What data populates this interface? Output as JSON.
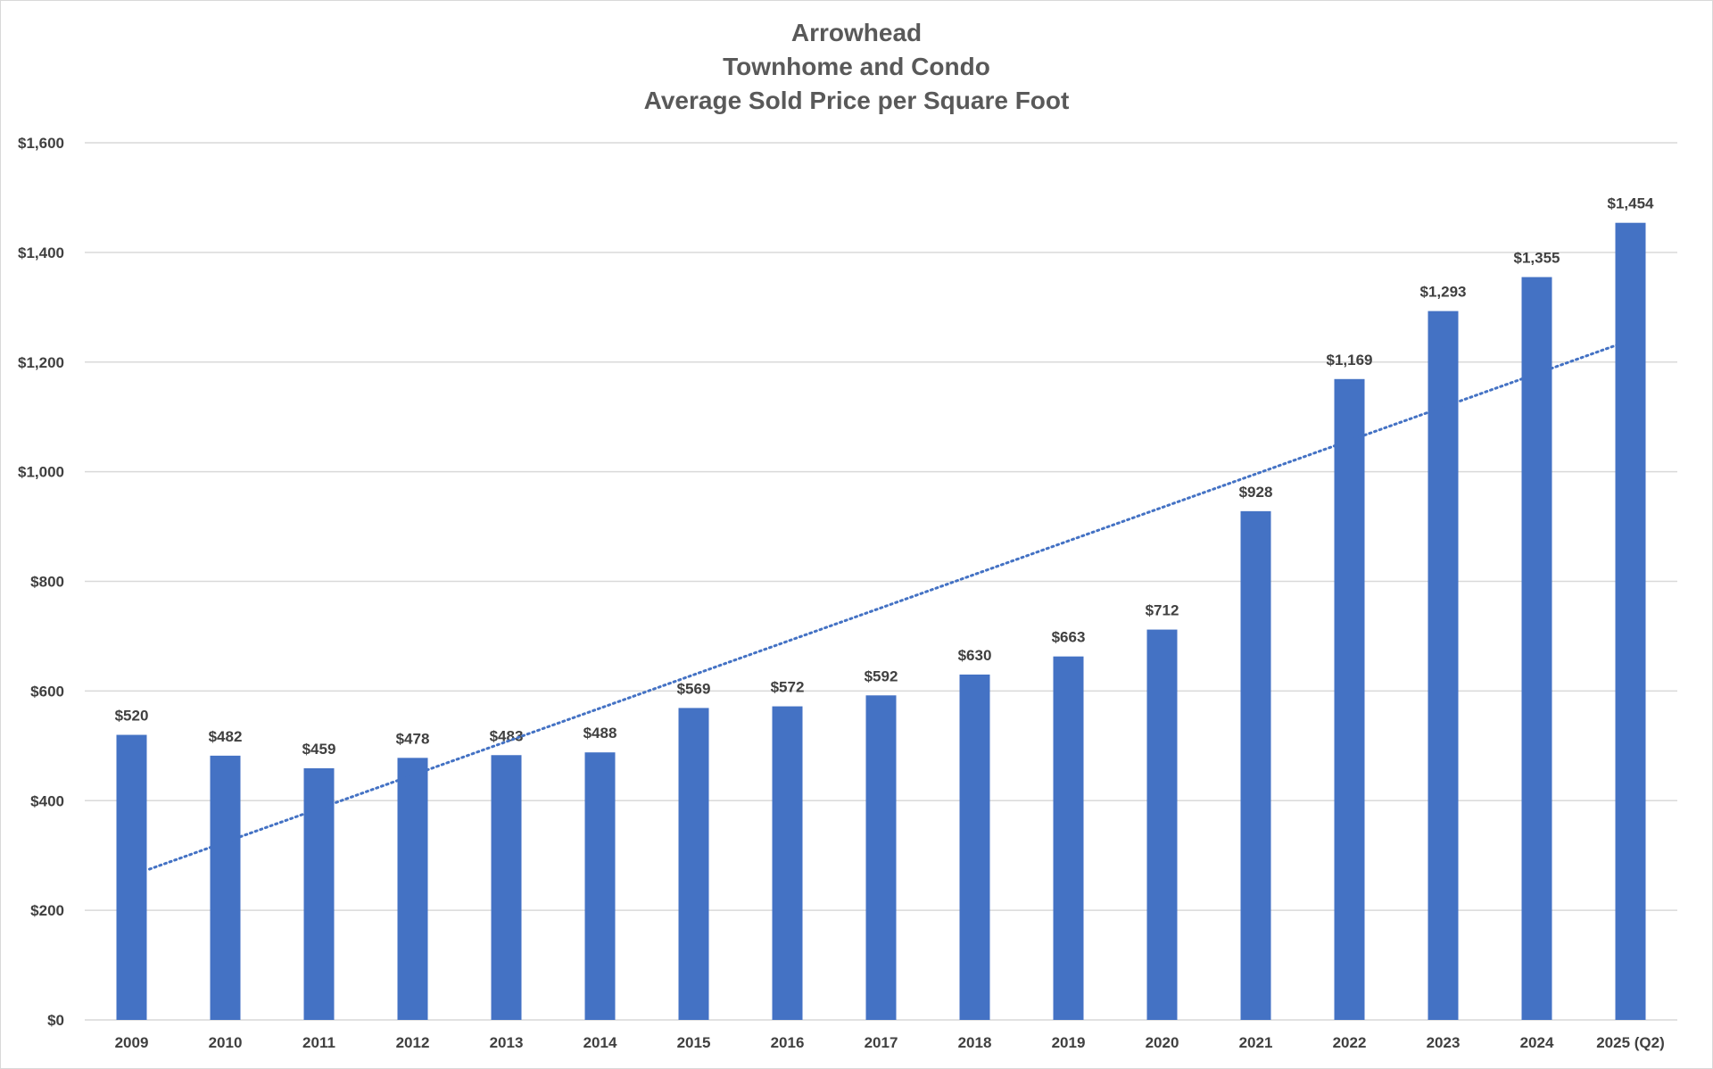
{
  "chart_data": {
    "type": "bar",
    "title_lines": [
      "Arrowhead",
      "Townhome and Condo",
      "Average Sold Price per Square Foot"
    ],
    "categories": [
      "2009",
      "2010",
      "2011",
      "2012",
      "2013",
      "2014",
      "2015",
      "2016",
      "2017",
      "2018",
      "2019",
      "2020",
      "2021",
      "2022",
      "2023",
      "2024",
      "2025 (Q2)"
    ],
    "values": [
      520,
      482,
      459,
      478,
      483,
      488,
      569,
      572,
      592,
      630,
      663,
      712,
      928,
      1169,
      1293,
      1355,
      1454
    ],
    "data_labels": [
      "$520",
      "$482",
      "$459",
      "$478",
      "$483",
      "$488",
      "$569",
      "$572",
      "$592",
      "$630",
      "$663",
      "$712",
      "$928",
      "$1,169",
      "$1,293",
      "$1,355",
      "$1,454"
    ],
    "ylim": [
      0,
      1600
    ],
    "y_ticks": [
      0,
      200,
      400,
      600,
      800,
      1000,
      1200,
      1400,
      1600
    ],
    "y_tick_labels": [
      "$0",
      "$200",
      "$400",
      "$600",
      "$800",
      "$1,000",
      "$1,200",
      "$1,400",
      "$1,600"
    ],
    "trendline": {
      "type": "linear",
      "style": "dotted",
      "start_value": 275,
      "end_value": 1233
    },
    "grid": true,
    "legend": "none",
    "colors": {
      "bar": "#4472C4",
      "trendline": "#4472C4",
      "grid": "#d9d9d9",
      "text": "#404040",
      "title": "#595959"
    }
  }
}
